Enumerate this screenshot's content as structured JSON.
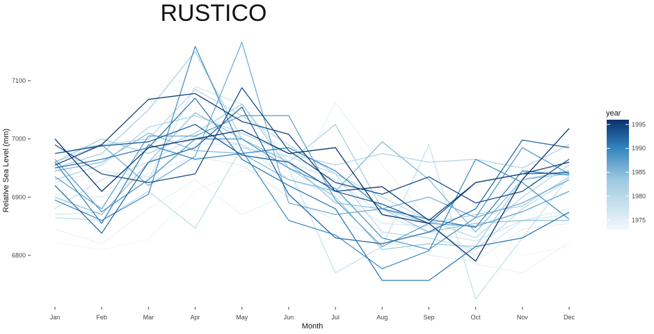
{
  "chart_data": {
    "type": "line",
    "title": "RUSTICO",
    "xlabel": "Month",
    "ylabel": "Relative Sea Level (mm)",
    "categories": [
      "Jan",
      "Feb",
      "Mar",
      "Apr",
      "May",
      "Jun",
      "Jul",
      "Aug",
      "Sep",
      "Oct",
      "Nov",
      "Dec"
    ],
    "y_ticks": [
      6800,
      6900,
      7000,
      7100
    ],
    "ylim": [
      6725,
      7170
    ],
    "grid": false,
    "legend": {
      "title": "year",
      "position": "right",
      "range": [
        1973,
        1996
      ],
      "ticks": [
        1975,
        1980,
        1985,
        1990,
        1995
      ],
      "color_low": "#f2f7fc",
      "color_high": "#08306b"
    },
    "series": [
      {
        "year": 1973,
        "values": [
          6822,
          6810,
          6827,
          6911,
          6945,
          6935,
          6920,
          6870,
          6860,
          6840,
          6800,
          6815
        ]
      },
      {
        "year": 1974,
        "values": [
          6845,
          6820,
          6880,
          6930,
          6870,
          6905,
          7063,
          6955,
          6860,
          6785,
          6770,
          6822
        ]
      },
      {
        "year": 1975,
        "values": [
          6905,
          6900,
          6941,
          6970,
          6955,
          6900,
          6860,
          6830,
          6800,
          6790,
          6845,
          6855
        ]
      },
      {
        "year": 1976,
        "values": [
          6925,
          6945,
          6935,
          6992,
          6990,
          6930,
          6905,
          6855,
          6850,
          6800,
          6860,
          6880
        ]
      },
      {
        "year": 1977,
        "values": [
          6870,
          6875,
          6930,
          7090,
          7060,
          6960,
          6930,
          6870,
          6840,
          6825,
          6860,
          6870
        ]
      },
      {
        "year": 1978,
        "values": [
          6880,
          6930,
          6960,
          7005,
          6990,
          6950,
          6770,
          6815,
          6990,
          6725,
          6830,
          6935
        ]
      },
      {
        "year": 1979,
        "values": [
          6865,
          6860,
          6910,
          6847,
          6985,
          6970,
          6940,
          6840,
          6830,
          6810,
          6880,
          6930
        ]
      },
      {
        "year": 1980,
        "values": [
          6960,
          6990,
          7000,
          7085,
          7040,
          6990,
          6940,
          6900,
          6860,
          6830,
          6900,
          6955
        ]
      },
      {
        "year": 1981,
        "values": [
          6930,
          6955,
          7020,
          7040,
          7010,
          6975,
          6955,
          6975,
          6960,
          6965,
          6950,
          6990
        ]
      },
      {
        "year": 1982,
        "values": [
          6950,
          6975,
          7050,
          7150,
          7000,
          6960,
          7025,
          6880,
          6855,
          6870,
          6885,
          6935
        ]
      },
      {
        "year": 1983,
        "values": [
          6960,
          7000,
          6975,
          7010,
          7060,
          6950,
          6900,
          6810,
          6820,
          6815,
          6930,
          6940
        ]
      },
      {
        "year": 1984,
        "values": [
          6900,
          6870,
          6960,
          7045,
          7000,
          6960,
          6890,
          6880,
          6840,
          6855,
          6860,
          6860
        ]
      },
      {
        "year": 1985,
        "values": [
          6945,
          6960,
          7010,
          6980,
          6975,
          6930,
          6910,
          6995,
          6930,
          6840,
          6930,
          6945
        ]
      },
      {
        "year": 1986,
        "values": [
          6975,
          6990,
          6920,
          6970,
          7166,
          6890,
          6870,
          6880,
          6900,
          6865,
          6890,
          6930
        ]
      },
      {
        "year": 1987,
        "values": [
          6935,
          6880,
          7005,
          7005,
          7040,
          7040,
          6895,
          6815,
          6855,
          6850,
          6875,
          6910
        ]
      },
      {
        "year": 1988,
        "values": [
          6965,
          6875,
          6930,
          7000,
          7000,
          6950,
          6915,
          6830,
          6810,
          6865,
          6985,
          6940
        ]
      },
      {
        "year": 1989,
        "values": [
          6895,
          6860,
          6905,
          7159,
          6980,
          6860,
          6835,
          6777,
          6808,
          6965,
          6925,
          6862
        ]
      },
      {
        "year": 1990,
        "values": [
          6960,
          6855,
          6990,
          6965,
          6975,
          6985,
          6945,
          6880,
          6862,
          6848,
          6945,
          6938
        ]
      },
      {
        "year": 1991,
        "values": [
          6950,
          6965,
          6985,
          7070,
          6965,
          6920,
          6880,
          6757,
          6757,
          6815,
          6830,
          6874
        ]
      },
      {
        "year": 1992,
        "values": [
          6920,
          6838,
          6960,
          6985,
          7055,
          6905,
          6830,
          6820,
          6840,
          6880,
          6998,
          6985
        ]
      },
      {
        "year": 1993,
        "values": [
          6975,
          6988,
          6995,
          7025,
          6972,
          6960,
          6910,
          6888,
          6855,
          6925,
          6940,
          6942
        ]
      },
      {
        "year": 1994,
        "values": [
          6990,
          6940,
          6925,
          6940,
          7088,
          6980,
          6925,
          6905,
          6935,
          6890,
          6910,
          6965
        ]
      },
      {
        "year": 1995,
        "values": [
          6955,
          6990,
          7068,
          7078,
          7030,
          7008,
          6910,
          6918,
          6860,
          6925,
          6940,
          6960
        ]
      },
      {
        "year": 1996,
        "values": [
          7000,
          6910,
          6985,
          7000,
          7015,
          6975,
          6985,
          6870,
          6855,
          6790,
          6930,
          7018
        ]
      }
    ]
  }
}
